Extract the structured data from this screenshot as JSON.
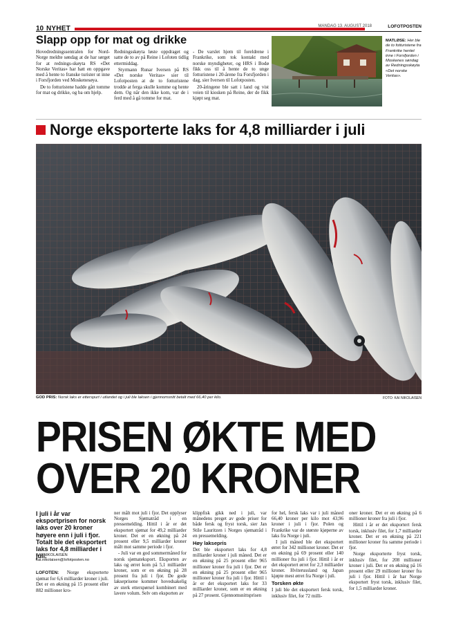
{
  "header": {
    "page_number": "10",
    "section": "NYHET",
    "date": "MANDAG 13. AUGUST 2018",
    "paper": "LOFOTPOSTEN",
    "accent_color": "#d1121d"
  },
  "top_story": {
    "headline": "Slapp opp for mat og drikke",
    "col1": [
      "Hovedredningssentralen for Nord-Norge meldte søndag at de har sørget for at rednings-skøyta RS «Det Norske Veritas» har hatt en oppgave med å hente to franske turister ut inne i Forsfjorden ved Moskenesøya.",
      "De to fotturistene hadde gått tomme for mat og drikke, og ba om hjelp."
    ],
    "col2": [
      "Redningsskøyta løste oppdraget og satte de to av på Reine i Lofoten tidlig ettermiddag.",
      "Styrmann Runar Iversen på RS «Det norske Veritas» sier til Lofotposten at de to fotturistene trodde at ferga skulle komme og hente dem. Og når den ikke kom, var de i ferd med å gå tomme for mat."
    ],
    "col3": [
      "- De varslet hjem til foreldrene i Frankrike, som tok kontakt med norske myndigheter, og HRS i Bodø fikk oss til å hente de to unge fotturistene i 20-årene fra Forsfjorden i dag, sier Iversen til Lofotposten.",
      "20-åringene ble satt i land og vist veien til kiosken på Reine, der de fikk kjøpt seg mat."
    ],
    "photo_caption_label": "MATLØSE:",
    "photo_caption": "Her ble de to fotturistene fra Frankrike hentet inne i Forsfjorden i Moskenes søndag av Redningsskøyta «Det norske Veritas»."
  },
  "main_story": {
    "headline": "Norge eksporterte laks for 4,8 milliarder i juli",
    "photo_caption_label": "GOD PRIS:",
    "photo_caption": "Norsk laks er etterspurt i utlandet og i juli ble laksen i gjennomsnitt betalt med 66,40 per kilo.",
    "photo_credit": "FOTO: KAI NIKOLAISEN",
    "big_headline_line1": "PRISEN ØKTE MED",
    "big_headline_line2": "OVER 20 KRONER",
    "lead": "I juli i år var eksportprisen for norsk laks over 20 kroner høyere enn i juli i fjor. Totalt ble det eksportert laks for 4,8 milliarder i juli.",
    "byline_name": "KAI NIKOLAISEN",
    "byline_email": "kai.nikolaisen@lofotposten.no",
    "col1_kicker": "LOFOTEN:",
    "col1_text": "Norge eksporterte sjømat for 6,6 milliarder kroner i juli. Det er en økning på 15 prosent eller 882 millioner kro-",
    "col2": [
      "ner målt mot juli i fjor. Det opplyser Norges Sjømatråd i en pressemelding. Hittil i år er det eksportert sjømat for 49,2 milliarder kroner. Det er en økning på 24 prosent eller 9,5 milliarder kroner målt mot samme periode i fjor.",
      "- Juli var en god sommermåned for norsk sjømateksport. Eksporten av laks og ørret kom på 5,1 milliarder kroner, som er en økning på 28 prosent fra juli i fjor. De gode lakseprisene kommer hovedsakelig av sterk etterspørsel kombinert med lavere volum. Selv om eksporten av"
    ],
    "col3_p1": "klippfisk gikk ned i juli, var månedens preget av gode priser for både fersk og fryst torsk, sier Jan Stile Lauritzen i Norges sjømatråd i en pressemelding.",
    "col3_sub": "Høy laksepris",
    "col3_p2": "Det ble eksportert laks for 4,8 milliarder kroner i juli måned. Det er en økning på 25 prosent eller 965 millioner kroner fra juli i fjor. Det er en økning på 25 prosent eller 965 millioner kroner fra juli i fjor. Hittil i år er det eksportert laks for 33 milliarder kroner, som er en økning på 27 prosent. Gjennomsnittsprisen",
    "col4_p1": "for hel, fersk laks var i juli måned 66,40 kroner per kilo mot 43,96 kroner i juli i fjor. Polen og Frankrike var de største kjøperne av laks fra Norge i juli.",
    "col4_p2": "I juli måned ble det eksportert ørret for 342 millioner kroner. Det er en økning på 69 prosent eller 140 millioner fra juli i fjor. Hittil i år er det eksportert ørret for 2,3 milliarder kroner. Hviterussland og Japan kjøpte mest ørret fra Norge i juli.",
    "col4_sub": "Torsken økte",
    "col4_p3": "I juli ble det eksportert fersk torsk, inklusiv filet, for 72 milli-",
    "col5": [
      "oner kroner. Det er en økning på 6 millioner kroner fra juli i fjor.",
      "Hittil i år er det eksportert fersk torsk, inklusiv filet, for 1,7 milliarder kroner. Det er en økning på 221 millioner kroner fra samme periode i fjor.",
      "Norge eksporterte fryst torsk, inklusiv filet, for 208 millioner kroner i juli. Det er en økning på 16 prosent eller 29 millioner kroner fra juli i fjor. Hittil i år har Norge eksportert fryst torsk, inklusiv filet, for 1,5 milliarder kroner."
    ]
  }
}
